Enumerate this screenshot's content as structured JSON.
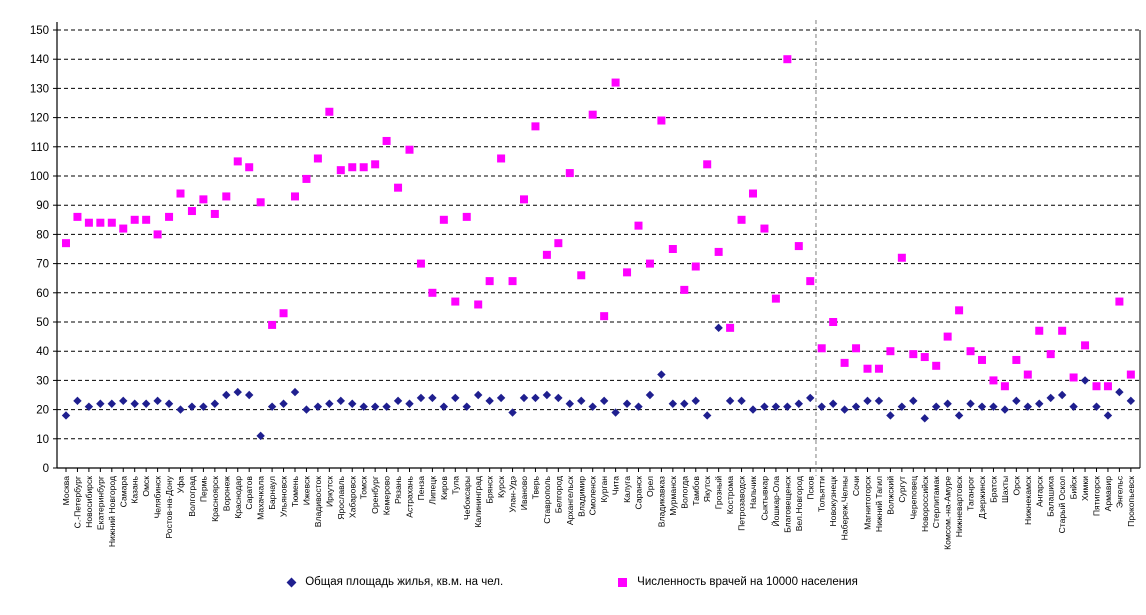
{
  "chart_data": {
    "type": "scatter",
    "title": "",
    "xlabel": "",
    "ylabel": "",
    "ylim": [
      0,
      150
    ],
    "ytick_step": 10,
    "grid": "horizontal-dashed",
    "legend_position": "bottom",
    "separator_after_index": 65,
    "separator_style": "vertical-dashed-gray",
    "categories": [
      "Москва",
      "С.-Петербург",
      "Новосибирск",
      "Екатеринбург",
      "Нижний Новгород",
      "Самара",
      "Казань",
      "Омск",
      "Челябинск",
      "Ростов-на-Дону",
      "Уфа",
      "Волгоград",
      "Пермь",
      "Красноярск",
      "Воронеж",
      "Краснодар",
      "Саратов",
      "Махачкала",
      "Барнаул",
      "Ульяновск",
      "Тюмень",
      "Ижевск",
      "Владивосток",
      "Иркутск",
      "Ярославль",
      "Хабаровск",
      "Томск",
      "Оренбург",
      "Кемерово",
      "Рязань",
      "Астрахань",
      "Пенза",
      "Липецк",
      "Киров",
      "Тула",
      "Чебоксары",
      "Калининград",
      "Брянск",
      "Курск",
      "Улан-Удэ",
      "Иваново",
      "Тверь",
      "Ставрополь",
      "Белгород",
      "Архангельск",
      "Владимир",
      "Смоленск",
      "Курган",
      "Чита",
      "Калуга",
      "Саранск",
      "Орел",
      "Владикавказ",
      "Мурманск",
      "Вологда",
      "Тамбов",
      "Якутск",
      "Грозный",
      "Кострома",
      "Петрозаводск",
      "Нальчик",
      "Сыктывкар",
      "Йошкар-Ола",
      "Благовещенск",
      "Вел.Новгород",
      "Псков",
      "Тольятти",
      "Новокузнецк",
      "Набереж.Челны",
      "Сочи",
      "Магнитогорск",
      "Нижний Тагил",
      "Волжский",
      "Сургут",
      "Череповец",
      "Новороссийск",
      "Стерлитамак",
      "Комсом.-на-Амуре",
      "Нижневартовск",
      "Таганрог",
      "Дзержинск",
      "Братск",
      "Шахты",
      "Орск",
      "Нижнекамск",
      "Ангарск",
      "Балашиха",
      "Старый Оскол",
      "Бийск",
      "Химки",
      "Пятигорск",
      "Армавир",
      "Энгельс",
      "Прокопьевск"
    ],
    "series": [
      {
        "name": "Общая площадь жилья, кв.м. на чел.",
        "marker": "diamond",
        "color": "#1f1f8f",
        "values": [
          18,
          23,
          21,
          22,
          22,
          23,
          22,
          22,
          23,
          22,
          20,
          21,
          21,
          22,
          25,
          26,
          25,
          11,
          21,
          22,
          26,
          20,
          21,
          22,
          23,
          22,
          21,
          21,
          21,
          23,
          22,
          24,
          24,
          21,
          24,
          21,
          25,
          23,
          24,
          19,
          24,
          24,
          25,
          24,
          22,
          23,
          21,
          23,
          19,
          22,
          21,
          25,
          32,
          22,
          22,
          23,
          18,
          48,
          23,
          23,
          20,
          21,
          21,
          21,
          22,
          24,
          21,
          22,
          20,
          21,
          23,
          23,
          18,
          21,
          23,
          17,
          21,
          22,
          18,
          22,
          21,
          21,
          20,
          23,
          21,
          22,
          24,
          25,
          21,
          30,
          21,
          18,
          26,
          23
        ]
      },
      {
        "name": "Численность врачей на 10000 населения",
        "marker": "square",
        "color": "#ff00ff",
        "values": [
          77,
          86,
          84,
          84,
          84,
          82,
          85,
          85,
          80,
          86,
          94,
          88,
          92,
          87,
          93,
          105,
          103,
          91,
          49,
          53,
          93,
          99,
          106,
          122,
          102,
          103,
          103,
          104,
          112,
          96,
          109,
          70,
          60,
          85,
          57,
          86,
          56,
          64,
          106,
          64,
          92,
          117,
          73,
          77,
          101,
          66,
          121,
          52,
          132,
          67,
          83,
          70,
          119,
          75,
          61,
          69,
          104,
          74,
          48,
          85,
          94,
          82,
          58,
          140,
          76,
          64,
          41,
          50,
          36,
          41,
          34,
          34,
          40,
          72,
          39,
          38,
          35,
          45,
          54,
          40,
          37,
          30,
          28,
          37,
          32,
          47,
          39,
          47,
          31,
          42,
          28,
          28,
          57,
          32
        ]
      }
    ],
    "colors": {
      "axis": "#000000",
      "gridline": "#000000",
      "separator": "#808080",
      "series1": "#1f1f8f",
      "series2": "#ff00ff"
    }
  }
}
